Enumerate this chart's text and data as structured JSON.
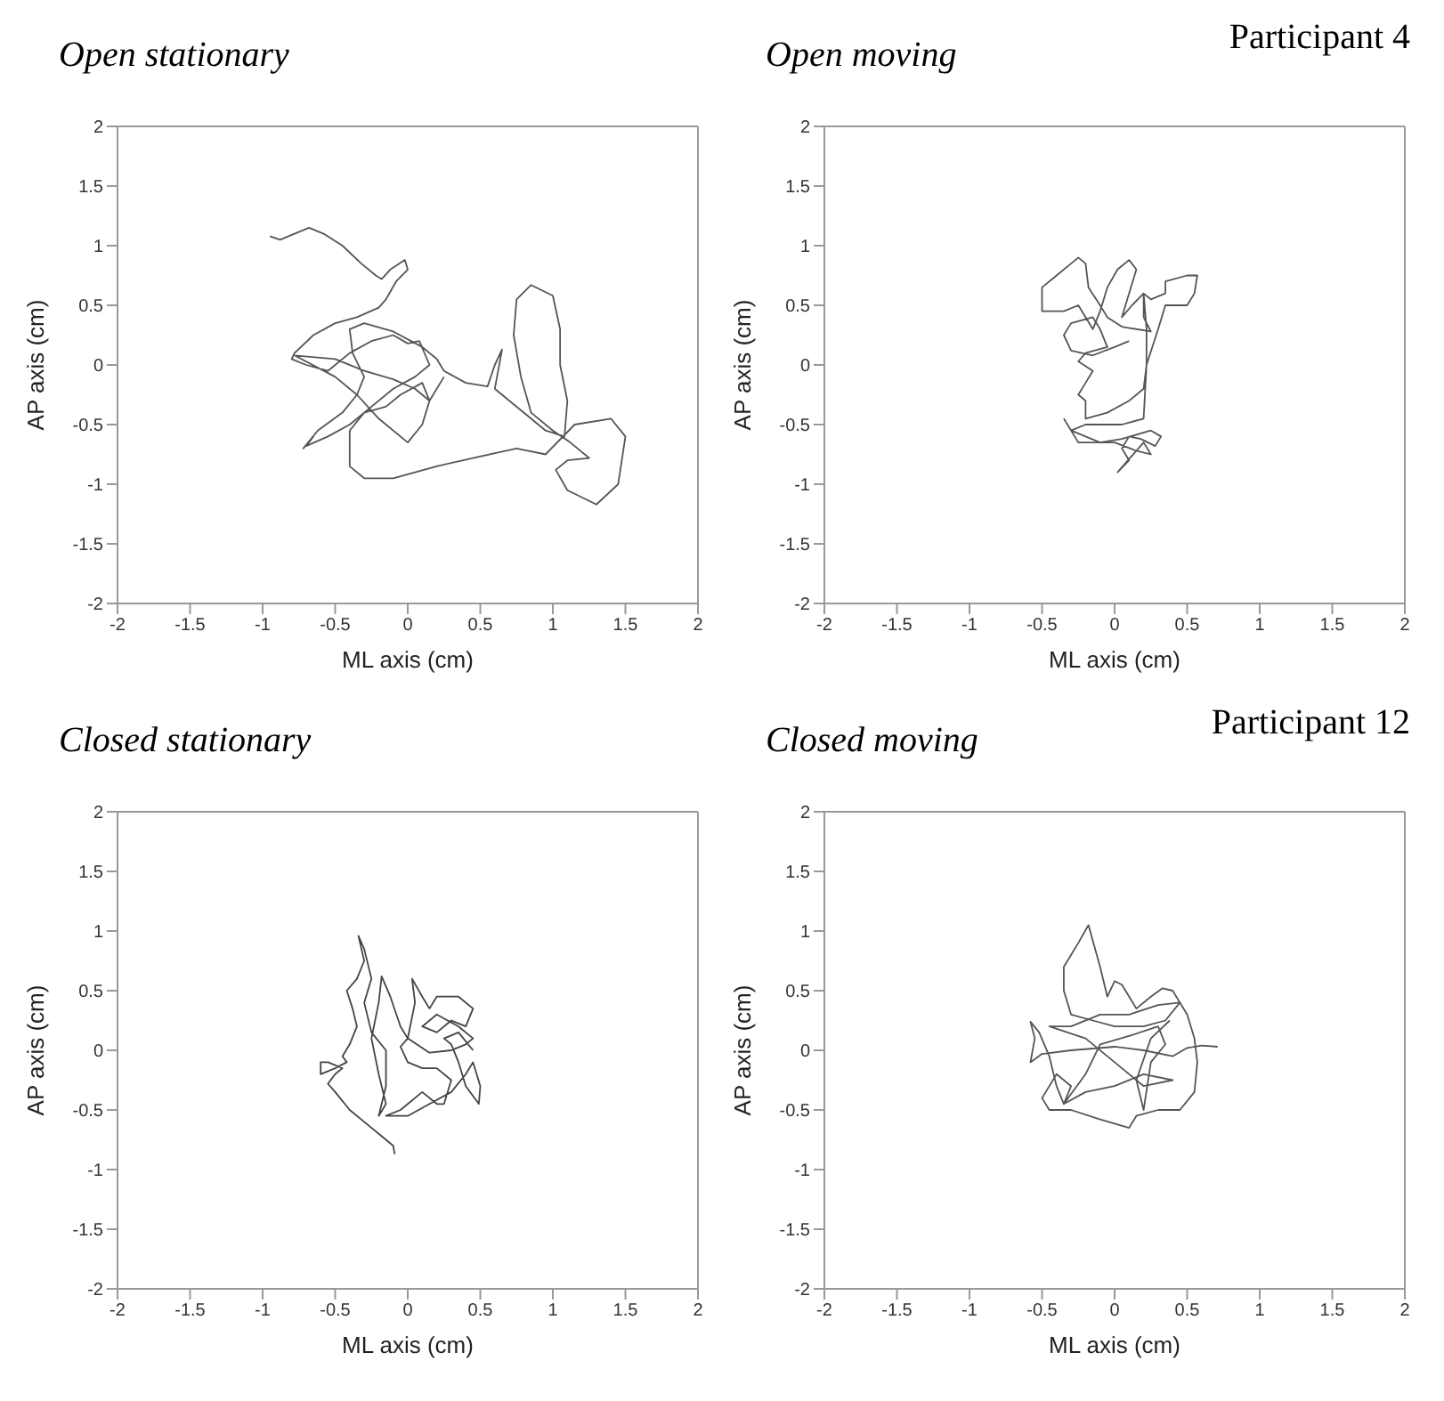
{
  "chart_data": [
    {
      "type": "line",
      "title": "Open stationary",
      "xlabel": "ML axis (cm)",
      "ylabel": "AP axis (cm)",
      "xlim": [
        -2,
        2
      ],
      "ylim": [
        -2,
        2
      ],
      "xticks": [
        -2,
        -1.5,
        -1,
        -0.5,
        0,
        0.5,
        1,
        1.5,
        2
      ],
      "yticks": [
        -2,
        -1.5,
        -1,
        -0.5,
        0,
        0.5,
        1,
        1.5,
        2
      ],
      "series": [
        {
          "color": "#555555",
          "x": [
            -0.95,
            -0.88,
            -0.78,
            -0.68,
            -0.58,
            -0.45,
            -0.32,
            -0.22,
            -0.18,
            -0.12,
            -0.02,
            0.0,
            -0.08,
            -0.15,
            -0.2,
            -0.35,
            -0.5,
            -0.65,
            -0.78,
            -0.8,
            -0.7,
            -0.55,
            -0.4,
            -0.25,
            -0.1,
            0.0,
            0.08,
            0.15,
            0.05,
            -0.1,
            -0.25,
            -0.4,
            -0.55,
            -0.7,
            -0.65,
            -0.72,
            -0.62,
            -0.45,
            -0.35,
            -0.3,
            -0.38,
            -0.4,
            -0.3,
            -0.1,
            0.1,
            0.2,
            0.25,
            0.4,
            0.55,
            0.6,
            0.65,
            0.6,
            0.7,
            0.82,
            0.95,
            1.08,
            1.1,
            1.05,
            1.05,
            1.0,
            0.85,
            0.75,
            0.73,
            0.78,
            0.85,
            1.0,
            1.12,
            1.25,
            1.1,
            1.02,
            1.1,
            1.3,
            1.45,
            1.5,
            1.4,
            1.15,
            0.95,
            0.75,
            0.45,
            0.2,
            -0.1,
            -0.3,
            -0.4,
            -0.4,
            -0.3,
            -0.15,
            -0.05,
            0.1,
            0.15,
            0.1,
            0.0,
            -0.2,
            -0.35,
            -0.5,
            -0.78,
            -0.5,
            -0.3,
            -0.1,
            0.05,
            0.15,
            0.25
          ],
          "values": [
            1.08,
            1.05,
            1.1,
            1.15,
            1.1,
            1.0,
            0.85,
            0.75,
            0.72,
            0.8,
            0.88,
            0.8,
            0.7,
            0.55,
            0.48,
            0.4,
            0.35,
            0.25,
            0.1,
            0.05,
            0.0,
            -0.05,
            0.1,
            0.2,
            0.25,
            0.18,
            0.2,
            0.0,
            -0.1,
            -0.2,
            -0.35,
            -0.5,
            -0.6,
            -0.68,
            -0.6,
            -0.7,
            -0.55,
            -0.4,
            -0.25,
            -0.1,
            0.1,
            0.3,
            0.35,
            0.28,
            0.15,
            0.05,
            -0.05,
            -0.15,
            -0.18,
            0.0,
            0.13,
            -0.2,
            -0.3,
            -0.42,
            -0.55,
            -0.6,
            -0.3,
            0.0,
            0.3,
            0.58,
            0.67,
            0.55,
            0.25,
            -0.1,
            -0.4,
            -0.55,
            -0.65,
            -0.78,
            -0.8,
            -0.88,
            -1.05,
            -1.17,
            -1.0,
            -0.6,
            -0.45,
            -0.5,
            -0.75,
            -0.7,
            -0.78,
            -0.85,
            -0.95,
            -0.95,
            -0.85,
            -0.55,
            -0.4,
            -0.35,
            -0.25,
            -0.15,
            -0.3,
            -0.5,
            -0.65,
            -0.45,
            -0.25,
            -0.1,
            0.08,
            0.05,
            -0.05,
            -0.12,
            -0.2,
            -0.3,
            -0.1
          ]
        }
      ]
    },
    {
      "type": "line",
      "title": "Open moving",
      "xlabel": "ML axis (cm)",
      "ylabel": "AP axis (cm)",
      "xlim": [
        -2,
        2
      ],
      "ylim": [
        -2,
        2
      ],
      "xticks": [
        -2,
        -1.5,
        -1,
        -0.5,
        0,
        0.5,
        1,
        1.5,
        2
      ],
      "yticks": [
        -2,
        -1.5,
        -1,
        -0.5,
        0,
        0.5,
        1,
        1.5,
        2
      ],
      "annotations": [
        "Participant 4"
      ],
      "series": [
        {
          "color": "#555555",
          "x": [
            0.1,
            0.0,
            -0.15,
            -0.3,
            -0.35,
            -0.3,
            -0.15,
            -0.1,
            -0.05,
            -0.2,
            -0.25,
            -0.15,
            -0.2,
            -0.25,
            -0.2,
            -0.2,
            -0.05,
            0.1,
            0.2,
            0.22,
            0.22,
            0.2,
            0.12,
            0.05,
            0.1,
            0.15,
            0.1,
            0.02,
            -0.05,
            -0.1,
            -0.15,
            -0.25,
            -0.35,
            -0.5,
            -0.5,
            -0.4,
            -0.3,
            -0.25,
            -0.2,
            -0.18,
            -0.1,
            -0.05,
            0.05,
            0.25,
            0.2,
            0.2,
            0.25,
            0.35,
            0.35,
            0.5,
            0.57,
            0.55,
            0.5,
            0.35,
            0.3,
            0.22,
            0.2,
            0.05,
            -0.2,
            -0.3,
            -0.2,
            -0.1,
            0.05,
            0.25,
            0.32,
            0.28,
            0.18,
            0.1,
            0.05,
            0.1,
            0.02,
            0.2,
            0.25,
            0.15,
            0.0,
            -0.25,
            -0.35
          ],
          "values": [
            0.2,
            0.15,
            0.08,
            0.12,
            0.25,
            0.35,
            0.4,
            0.3,
            0.15,
            0.1,
            0.03,
            -0.05,
            -0.15,
            -0.25,
            -0.3,
            -0.45,
            -0.4,
            -0.3,
            -0.2,
            0.0,
            0.3,
            0.6,
            0.5,
            0.4,
            0.6,
            0.8,
            0.88,
            0.8,
            0.65,
            0.45,
            0.3,
            0.5,
            0.45,
            0.45,
            0.65,
            0.75,
            0.85,
            0.9,
            0.85,
            0.65,
            0.5,
            0.4,
            0.32,
            0.28,
            0.4,
            0.6,
            0.55,
            0.6,
            0.7,
            0.75,
            0.75,
            0.6,
            0.5,
            0.5,
            0.3,
            0.0,
            -0.45,
            -0.5,
            -0.5,
            -0.55,
            -0.6,
            -0.65,
            -0.62,
            -0.55,
            -0.6,
            -0.68,
            -0.62,
            -0.6,
            -0.7,
            -0.8,
            -0.9,
            -0.65,
            -0.75,
            -0.72,
            -0.65,
            -0.65,
            -0.45
          ]
        }
      ]
    },
    {
      "type": "line",
      "title": "Closed stationary",
      "xlabel": "ML axis (cm)",
      "ylabel": "AP axis (cm)",
      "xlim": [
        -2,
        2
      ],
      "ylim": [
        -2,
        2
      ],
      "xticks": [
        -2,
        -1.5,
        -1,
        -0.5,
        0,
        0.5,
        1,
        1.5,
        2
      ],
      "yticks": [
        -2,
        -1.5,
        -1,
        -0.5,
        0,
        0.5,
        1,
        1.5,
        2
      ],
      "series": [
        {
          "color": "#444444",
          "x": [
            -0.09,
            -0.1,
            -0.2,
            -0.3,
            -0.4,
            -0.5,
            -0.55,
            -0.5,
            -0.45,
            -0.55,
            -0.6,
            -0.6,
            -0.5,
            -0.42,
            -0.45,
            -0.4,
            -0.35,
            -0.38,
            -0.42,
            -0.35,
            -0.3,
            -0.34,
            -0.3,
            -0.25,
            -0.3,
            -0.25,
            -0.15,
            -0.15,
            -0.2,
            -0.15,
            -0.2,
            -0.25,
            -0.2,
            -0.18,
            -0.12,
            -0.05,
            0.0,
            0.05,
            0.03,
            0.1,
            0.15,
            0.2,
            0.35,
            0.45,
            0.4,
            0.3,
            0.2,
            0.1,
            0.2,
            0.35,
            0.45,
            0.4,
            0.3,
            0.15,
            0.0,
            -0.05,
            0.0,
            0.1,
            0.2,
            0.3,
            0.25,
            0.2,
            0.1,
            -0.05,
            -0.15,
            0.0,
            0.15,
            0.3,
            0.4,
            0.45,
            0.5,
            0.49,
            0.4,
            0.35,
            0.3,
            0.25,
            0.35,
            0.45
          ],
          "values": [
            -0.87,
            -0.8,
            -0.7,
            -0.6,
            -0.5,
            -0.35,
            -0.28,
            -0.2,
            -0.15,
            -0.1,
            -0.1,
            -0.2,
            -0.15,
            -0.1,
            -0.05,
            0.05,
            0.2,
            0.35,
            0.5,
            0.6,
            0.75,
            0.96,
            0.85,
            0.6,
            0.4,
            0.15,
            0.0,
            -0.3,
            -0.55,
            -0.45,
            -0.2,
            0.1,
            0.4,
            0.62,
            0.45,
            0.2,
            0.1,
            0.4,
            0.6,
            0.45,
            0.35,
            0.45,
            0.45,
            0.35,
            0.2,
            0.25,
            0.15,
            0.2,
            0.3,
            0.2,
            0.1,
            0.05,
            0.0,
            -0.02,
            0.1,
            0.03,
            -0.1,
            -0.15,
            -0.15,
            -0.25,
            -0.45,
            -0.45,
            -0.35,
            -0.5,
            -0.55,
            -0.55,
            -0.45,
            -0.35,
            -0.2,
            -0.1,
            -0.3,
            -0.45,
            -0.3,
            -0.1,
            0.05,
            0.1,
            0.15,
            0.0
          ]
        }
      ]
    },
    {
      "type": "line",
      "title": "Closed moving",
      "xlabel": "ML axis (cm)",
      "ylabel": "AP axis (cm)",
      "xlim": [
        -2,
        2
      ],
      "ylim": [
        -2,
        2
      ],
      "xticks": [
        -2,
        -1.5,
        -1,
        -0.5,
        0,
        0.5,
        1,
        1.5,
        2
      ],
      "yticks": [
        -2,
        -1.5,
        -1,
        -0.5,
        0,
        0.5,
        1,
        1.5,
        2
      ],
      "annotations": [
        "Participant 12"
      ],
      "series": [
        {
          "color": "#555555",
          "x": [
            0.71,
            0.6,
            0.5,
            0.4,
            0.2,
            0.0,
            -0.3,
            -0.5,
            -0.58,
            -0.55,
            -0.58,
            -0.52,
            -0.45,
            -0.4,
            -0.35,
            -0.3,
            -0.4,
            -0.5,
            -0.45,
            -0.3,
            -0.1,
            0.1,
            0.15,
            0.3,
            0.45,
            0.55,
            0.57,
            0.55,
            0.5,
            0.4,
            0.33,
            0.25,
            0.15,
            0.05,
            0.0,
            -0.05,
            -0.1,
            -0.18,
            -0.25,
            -0.35,
            -0.35,
            -0.3,
            -0.15,
            0.0,
            0.2,
            0.35,
            0.45,
            0.3,
            0.1,
            -0.1,
            -0.3,
            -0.45,
            -0.2,
            0.0,
            0.2,
            0.4,
            0.2,
            0.0,
            -0.2,
            -0.35,
            -0.2,
            -0.1,
            0.1,
            0.3,
            0.35,
            0.25,
            0.2,
            0.15,
            0.25,
            0.38
          ],
          "values": [
            0.03,
            0.04,
            0.02,
            -0.05,
            0.0,
            0.03,
            0.0,
            -0.03,
            -0.1,
            0.1,
            0.24,
            0.15,
            -0.05,
            -0.3,
            -0.45,
            -0.3,
            -0.2,
            -0.4,
            -0.5,
            -0.5,
            -0.58,
            -0.65,
            -0.55,
            -0.5,
            -0.5,
            -0.35,
            -0.1,
            0.1,
            0.3,
            0.5,
            0.52,
            0.45,
            0.35,
            0.55,
            0.58,
            0.45,
            0.7,
            1.05,
            0.9,
            0.7,
            0.5,
            0.3,
            0.25,
            0.2,
            0.2,
            0.25,
            0.4,
            0.38,
            0.3,
            0.3,
            0.2,
            0.2,
            0.1,
            -0.1,
            -0.3,
            -0.25,
            -0.2,
            -0.3,
            -0.35,
            -0.45,
            -0.2,
            0.05,
            0.12,
            0.2,
            0.05,
            -0.1,
            -0.5,
            -0.25,
            0.1,
            0.25
          ]
        }
      ]
    }
  ]
}
